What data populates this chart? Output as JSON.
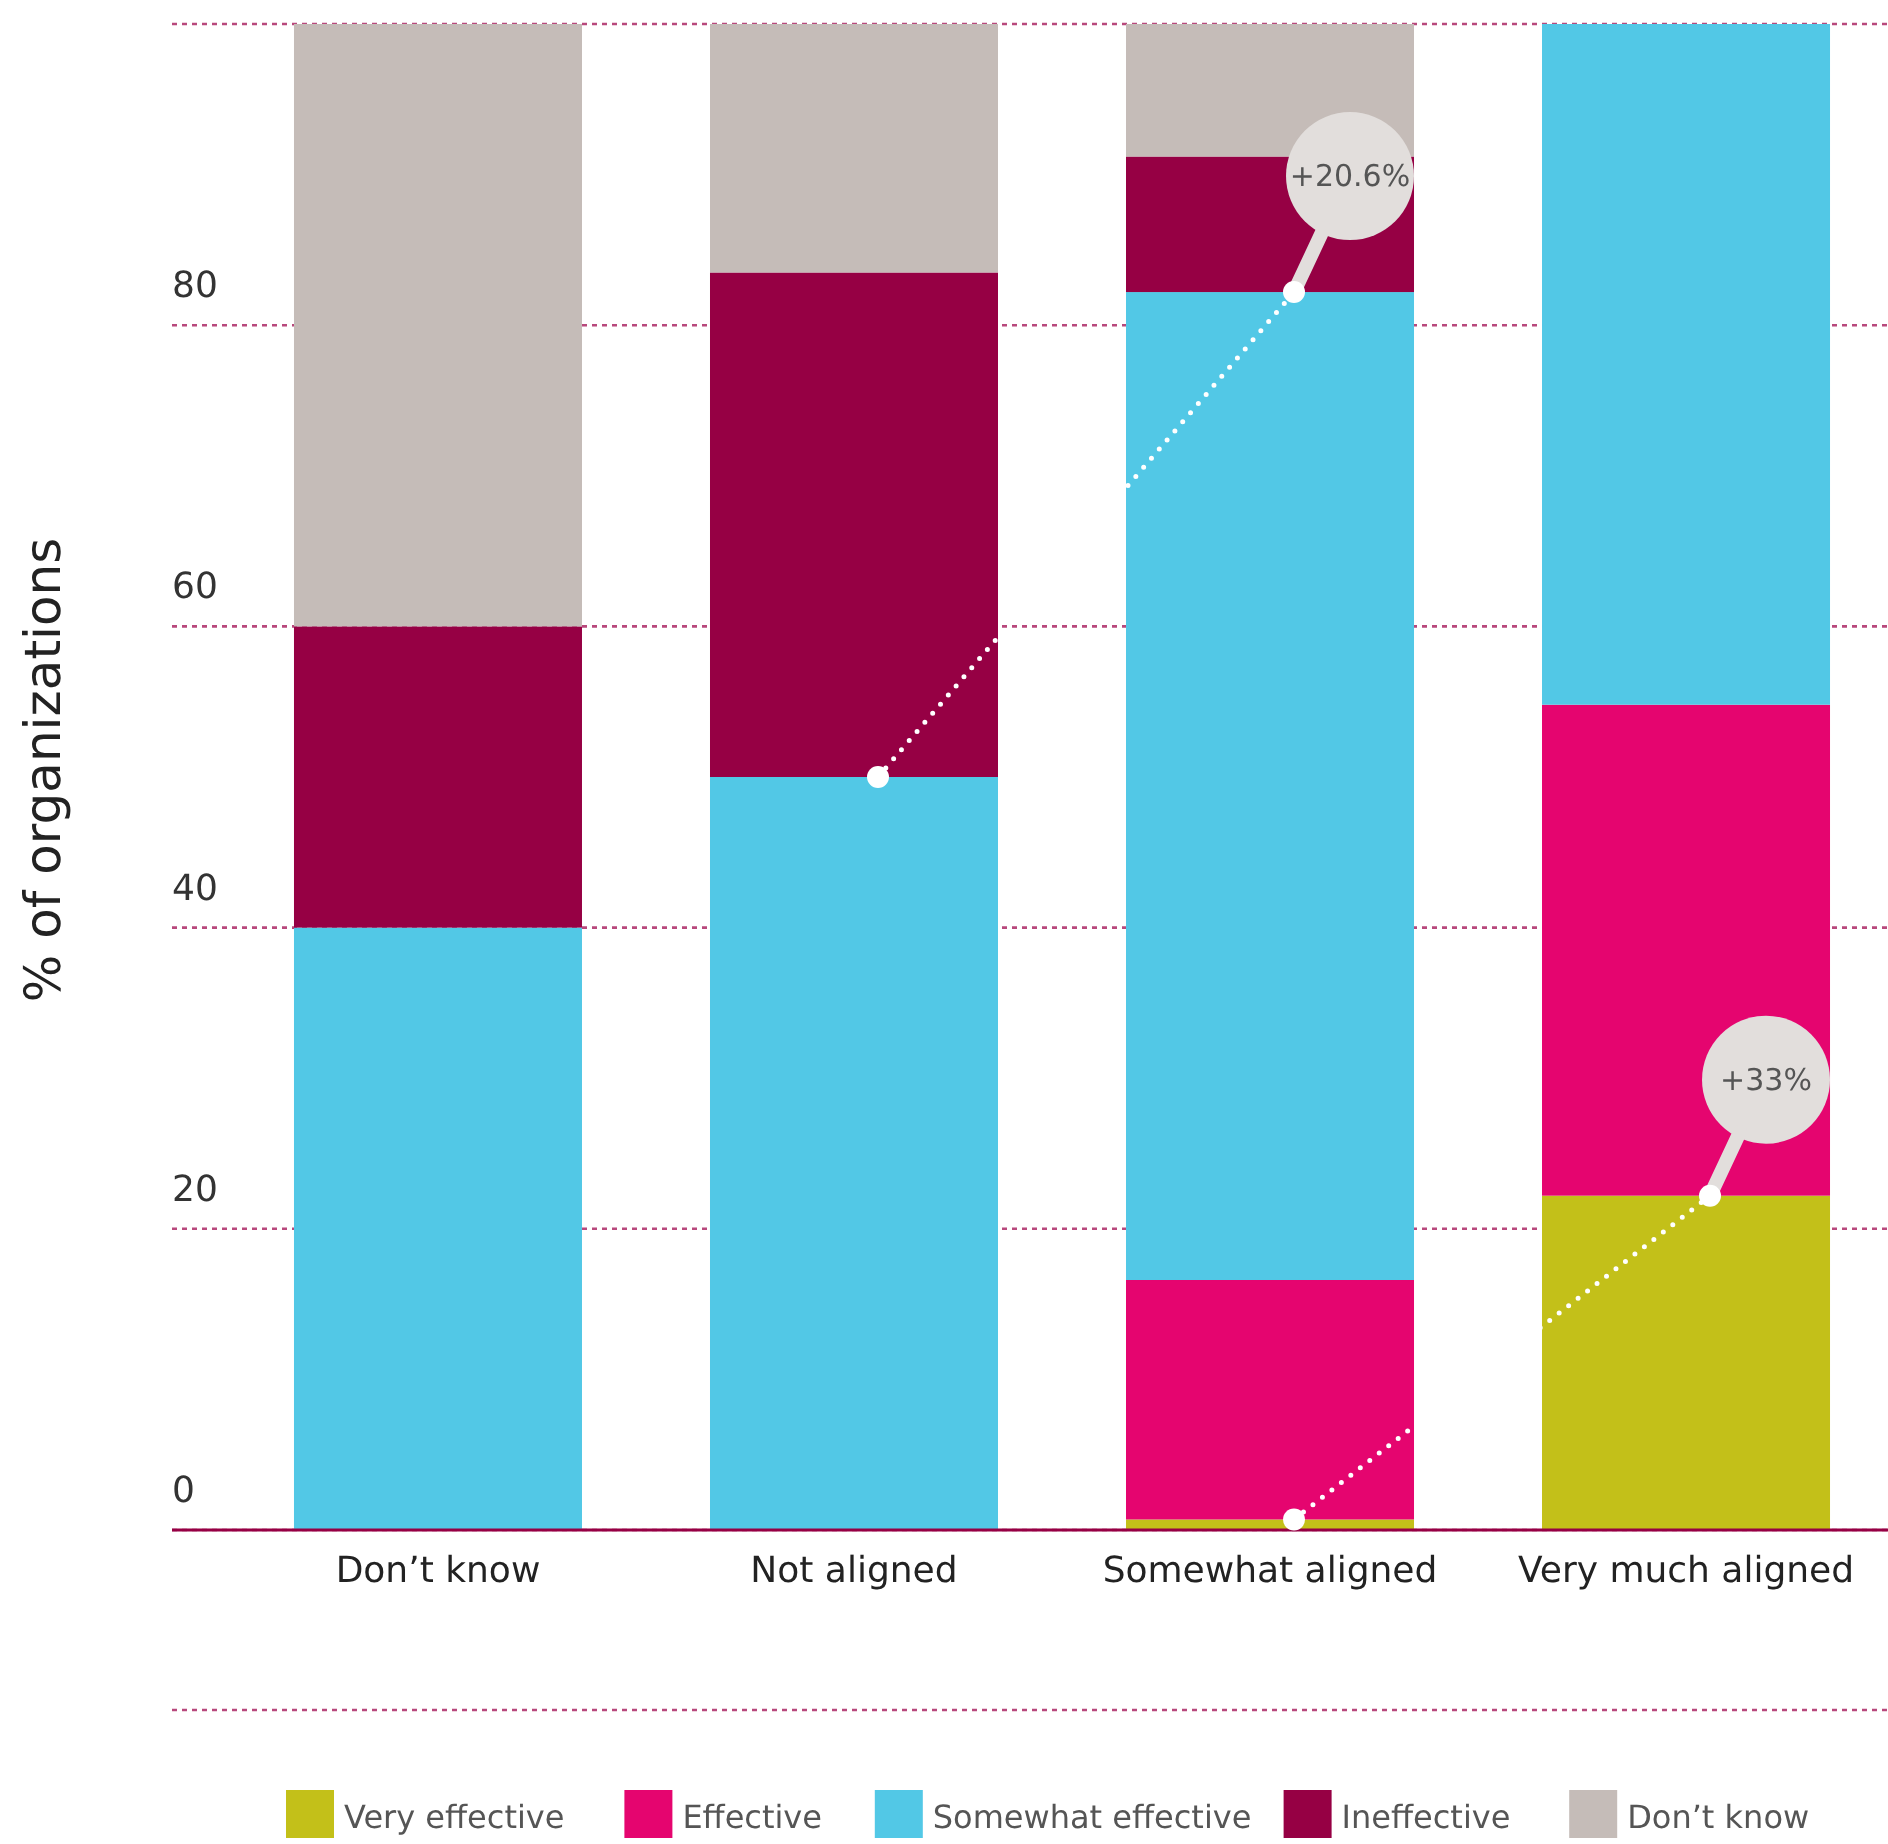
{
  "chart_data": {
    "type": "bar",
    "stacked": true,
    "ylabel": "% of organizations",
    "categories": [
      "Don’t know",
      "Not aligned",
      "Somewhat aligned",
      "Very much aligned"
    ],
    "series": [
      {
        "name": "Very effective",
        "color": "#c3c019",
        "values": [
          0,
          0,
          0.7,
          22.2
        ]
      },
      {
        "name": "Effective",
        "color": "#e5056f",
        "values": [
          0,
          0,
          15.9,
          32.6
        ]
      },
      {
        "name": "Somewhat effective",
        "color": "#52c8e6",
        "values": [
          40,
          50,
          65.6,
          45.2
        ]
      },
      {
        "name": "Ineffective",
        "color": "#960044",
        "values": [
          20,
          33.5,
          9,
          0
        ]
      },
      {
        "name": "Don’t know",
        "color": "#c5bcb8",
        "values": [
          40,
          16.5,
          8.8,
          0
        ]
      }
    ],
    "ylim": [
      0,
      100
    ],
    "yticks": [
      0,
      20,
      40,
      60,
      80,
      {
        "value": 100,
        "label": null
      }
    ],
    "grid": "y",
    "legend": "bottom",
    "annotations": [
      "+20.6%",
      "+33%"
    ]
  }
}
